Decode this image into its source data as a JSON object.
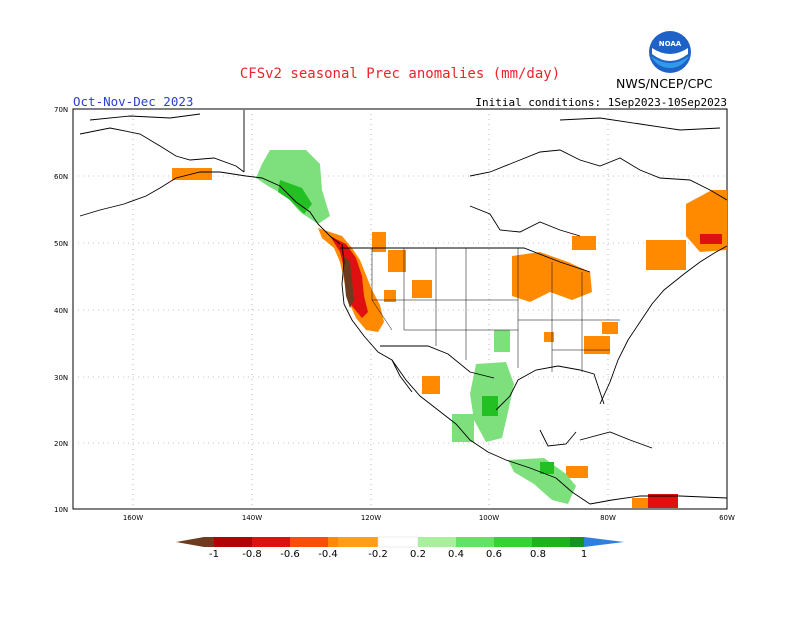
{
  "header": {
    "title": "CFSv2 seasonal Prec anomalies (mm/day)",
    "period": "Oct-Nov-Dec 2023",
    "initial_conditions": "Initial conditions: 1Sep2023-10Sep2023",
    "agency": "NWS/NCEP/CPC",
    "logo_text": "NOAA"
  },
  "map": {
    "lat_labels": [
      "70N",
      "60N",
      "50N",
      "40N",
      "30N",
      "20N",
      "10N"
    ],
    "lon_labels": [
      "160W",
      "140W",
      "120W",
      "100W",
      "80W",
      "60W"
    ],
    "region": "North America"
  },
  "colorbar": {
    "labels": [
      "-1",
      "-0.8",
      "-0.6",
      "-0.4",
      "-0.2",
      "0.2",
      "0.4",
      "0.6",
      "0.8",
      "1"
    ],
    "colors": [
      "#6e3b1f",
      "#b40000",
      "#e01010",
      "#ff4a10",
      "#ff8a00",
      "#ffaa10",
      "#ffffff",
      "#7de07d",
      "#44dd44",
      "#22c022",
      "#109010",
      "#1a9020",
      "#2f7fe0"
    ]
  },
  "colors": {
    "title": "#e8262a",
    "period": "#2b3fd1",
    "dry_strong": "#b40000",
    "dry": "#ff8a00",
    "wet": "#7de07d",
    "wet_strong": "#22c022"
  }
}
